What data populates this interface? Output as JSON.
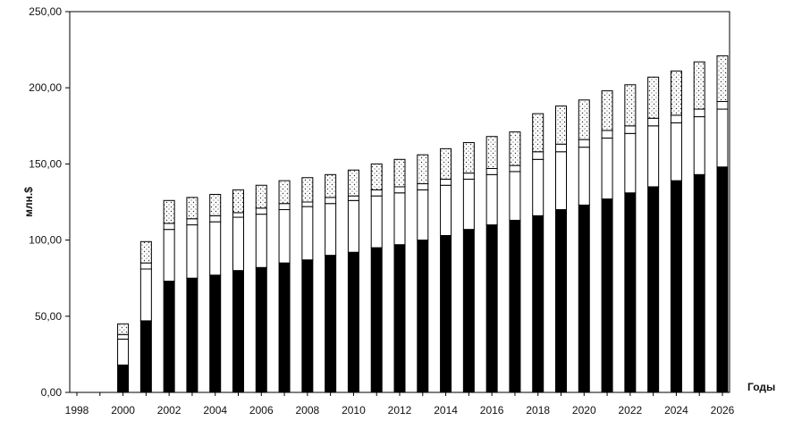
{
  "chart_data": {
    "type": "bar",
    "stacked": true,
    "title": "",
    "xlabel": "Годы",
    "ylabel": "млн.$",
    "ylim": [
      0,
      250
    ],
    "yticks": [
      "0,00",
      "50,00",
      "100,00",
      "150,00",
      "200,00",
      "250,00"
    ],
    "ytick_values": [
      0,
      50,
      100,
      150,
      200,
      250
    ],
    "xlim": [
      1998,
      2026
    ],
    "xticks": [
      "1998",
      "2000",
      "2002",
      "2004",
      "2006",
      "2008",
      "2010",
      "2012",
      "2014",
      "2016",
      "2018",
      "2020",
      "2022",
      "2024",
      "2026"
    ],
    "xtick_values": [
      1998,
      2000,
      2002,
      2004,
      2006,
      2008,
      2010,
      2012,
      2014,
      2016,
      2018,
      2020,
      2022,
      2024,
      2026
    ],
    "grid": false,
    "legend": "none",
    "x": [
      2000,
      2001,
      2002,
      2003,
      2004,
      2005,
      2006,
      2007,
      2008,
      2009,
      2010,
      2011,
      2012,
      2013,
      2014,
      2015,
      2016,
      2017,
      2018,
      2019,
      2020,
      2021,
      2022,
      2023,
      2024,
      2025,
      2026
    ],
    "series": [
      {
        "fill": "#000000",
        "pattern": "solid",
        "values": [
          18,
          47,
          73,
          75,
          77,
          80,
          82,
          85,
          87,
          90,
          92,
          95,
          97,
          100,
          103,
          107,
          110,
          113,
          116,
          120,
          123,
          127,
          131,
          135,
          139,
          143,
          148
        ]
      },
      {
        "fill": "#ffffff",
        "pattern": "empty",
        "values": [
          17,
          34,
          34,
          35,
          35,
          35,
          35,
          35,
          35,
          34,
          34,
          34,
          34,
          33,
          33,
          33,
          33,
          32,
          37,
          38,
          38,
          40,
          39,
          40,
          38,
          38,
          38
        ]
      },
      {
        "fill": "#ffffff",
        "pattern": "empty",
        "values": [
          3,
          4,
          4,
          4,
          4,
          3,
          4,
          4,
          3,
          4,
          3,
          4,
          4,
          4,
          4,
          4,
          4,
          4,
          5,
          5,
          5,
          5,
          5,
          5,
          5,
          5,
          5
        ]
      },
      {
        "fill": "#ffffff",
        "pattern": "dotted",
        "values": [
          7,
          14,
          15,
          14,
          14,
          15,
          15,
          15,
          16,
          15,
          17,
          17,
          18,
          19,
          20,
          20,
          21,
          22,
          25,
          25,
          26,
          26,
          27,
          27,
          29,
          31,
          30
        ]
      }
    ]
  }
}
